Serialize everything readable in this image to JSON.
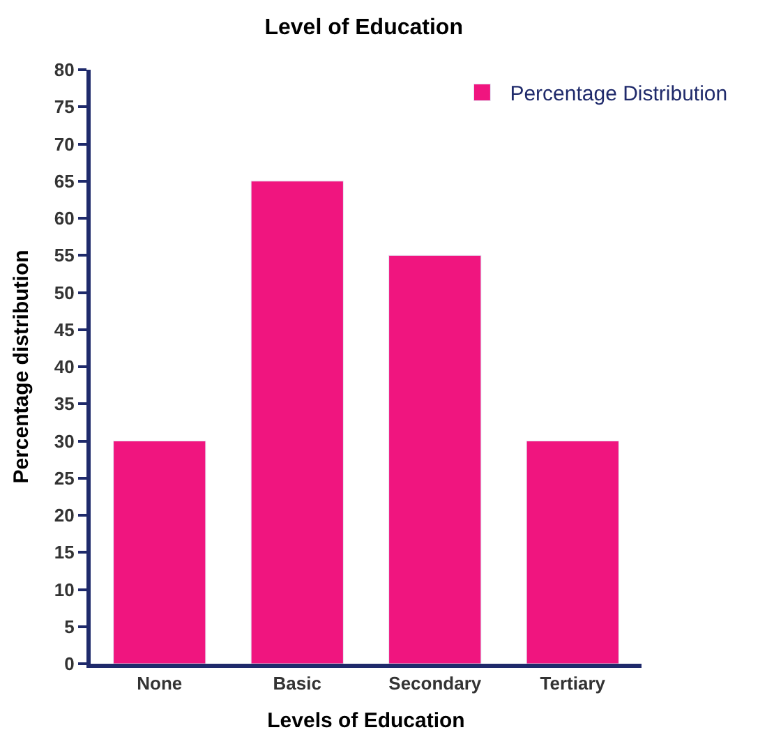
{
  "chart_data": {
    "type": "bar",
    "title": "Level of Education",
    "xlabel": "Levels of Education",
    "ylabel": "Percentage distribution",
    "categories": [
      "None",
      "Basic",
      "Secondary",
      "Tertiary"
    ],
    "series": [
      {
        "name": "Percentage Distribution",
        "color": "#f0157f",
        "values": [
          30,
          65,
          55,
          30
        ]
      }
    ],
    "ylim": [
      0,
      80
    ],
    "yticks": [
      0,
      5,
      10,
      15,
      20,
      25,
      30,
      35,
      40,
      45,
      50,
      55,
      60,
      65,
      70,
      75,
      80
    ],
    "legend": "top right"
  }
}
